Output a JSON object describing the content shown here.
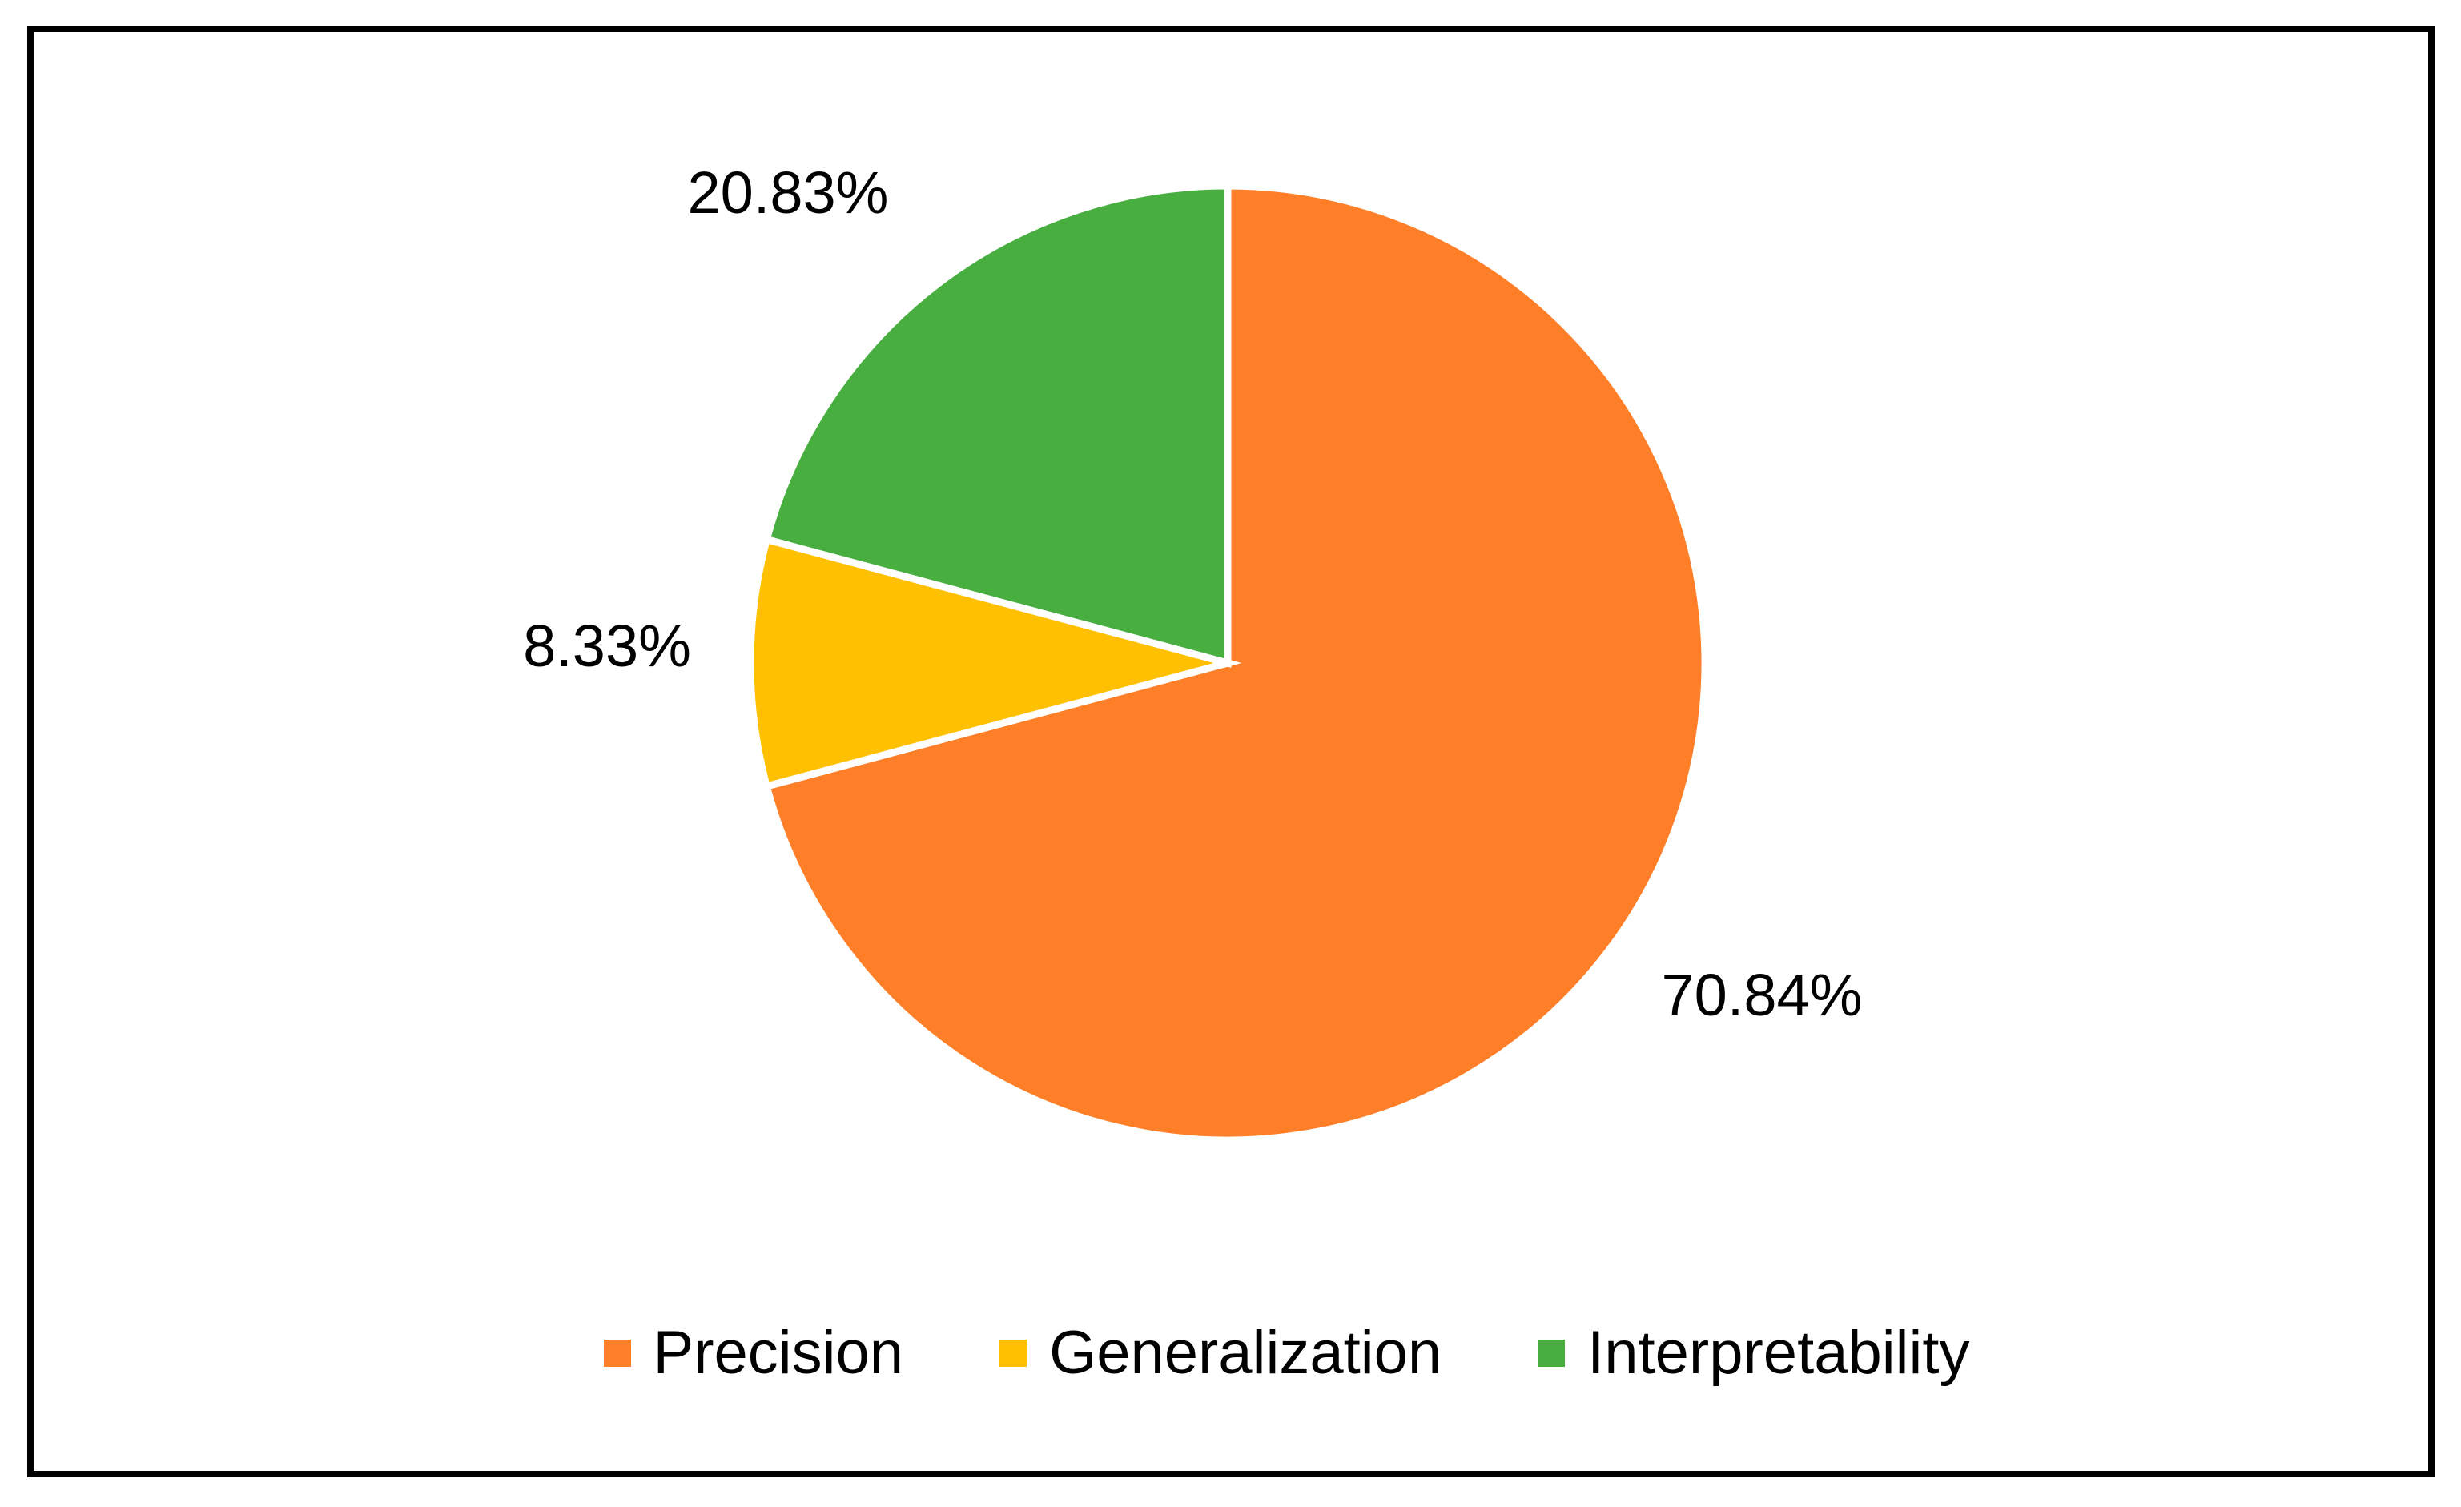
{
  "chart_data": {
    "type": "pie",
    "start_angle_deg": 0,
    "direction": "clockwise",
    "slices": [
      {
        "name": "Precision",
        "value": 70.84,
        "label": "70.84%",
        "color": "#FE7F27"
      },
      {
        "name": "Generalization",
        "value": 8.33,
        "label": "8.33%",
        "color": "#FEC000"
      },
      {
        "name": "Interpretability",
        "value": 20.83,
        "label": "20.83%",
        "color": "#47AE3F"
      }
    ],
    "legend_position": "bottom",
    "slice_border_color": "#ffffff"
  },
  "legend": {
    "items": [
      {
        "label": "Precision",
        "color": "#FE7F27"
      },
      {
        "label": "Generalization",
        "color": "#FEC000"
      },
      {
        "label": "Interpretability",
        "color": "#47AE3F"
      }
    ]
  }
}
